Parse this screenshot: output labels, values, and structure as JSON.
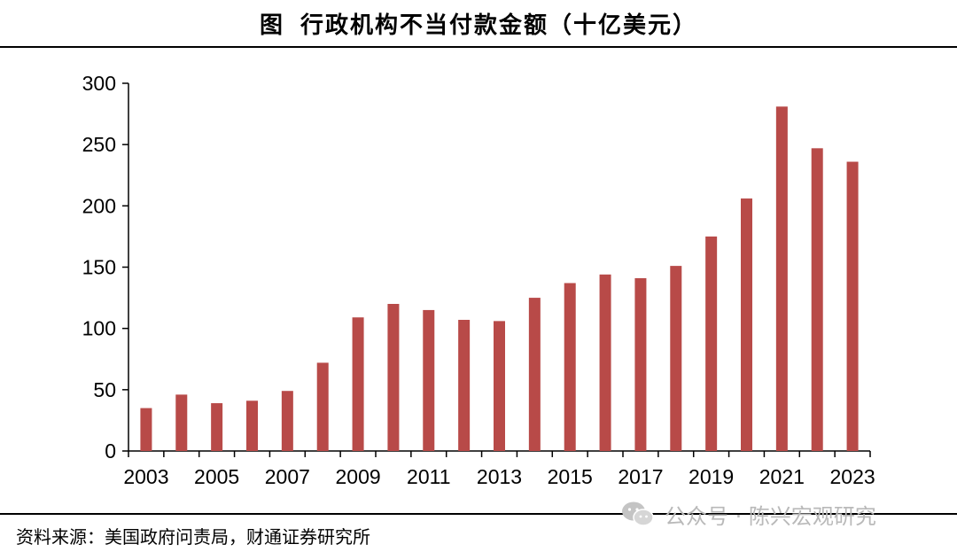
{
  "header": {
    "figure_label": "图",
    "title": "行政机构不当付款金额（十亿美元）"
  },
  "footer": {
    "source": "资料来源：美国政府问责局，财通证券研究所"
  },
  "watermark": {
    "text": "公众号 · 陈兴宏观研究",
    "icon": "wechat-icon"
  },
  "colors": {
    "bar": "#B84A48",
    "axis": "#000000",
    "watermark": "#B9B9B9"
  },
  "chart_data": {
    "type": "bar",
    "title": "行政机构不当付款金额（十亿美元）",
    "xlabel": "",
    "ylabel": "",
    "ylim": [
      0,
      300
    ],
    "yticks": [
      0,
      50,
      100,
      150,
      200,
      250,
      300
    ],
    "grid": false,
    "categories": [
      "2003",
      "2004",
      "2005",
      "2006",
      "2007",
      "2008",
      "2009",
      "2010",
      "2011",
      "2012",
      "2013",
      "2014",
      "2015",
      "2016",
      "2017",
      "2018",
      "2019",
      "2020",
      "2021",
      "2022",
      "2023"
    ],
    "xtick_labels": [
      "2003",
      "2005",
      "2007",
      "2009",
      "2011",
      "2013",
      "2015",
      "2017",
      "2019",
      "2021",
      "2023"
    ],
    "values": [
      35,
      46,
      39,
      41,
      49,
      72,
      109,
      120,
      115,
      107,
      106,
      125,
      137,
      144,
      141,
      151,
      175,
      206,
      281,
      247,
      236
    ]
  }
}
